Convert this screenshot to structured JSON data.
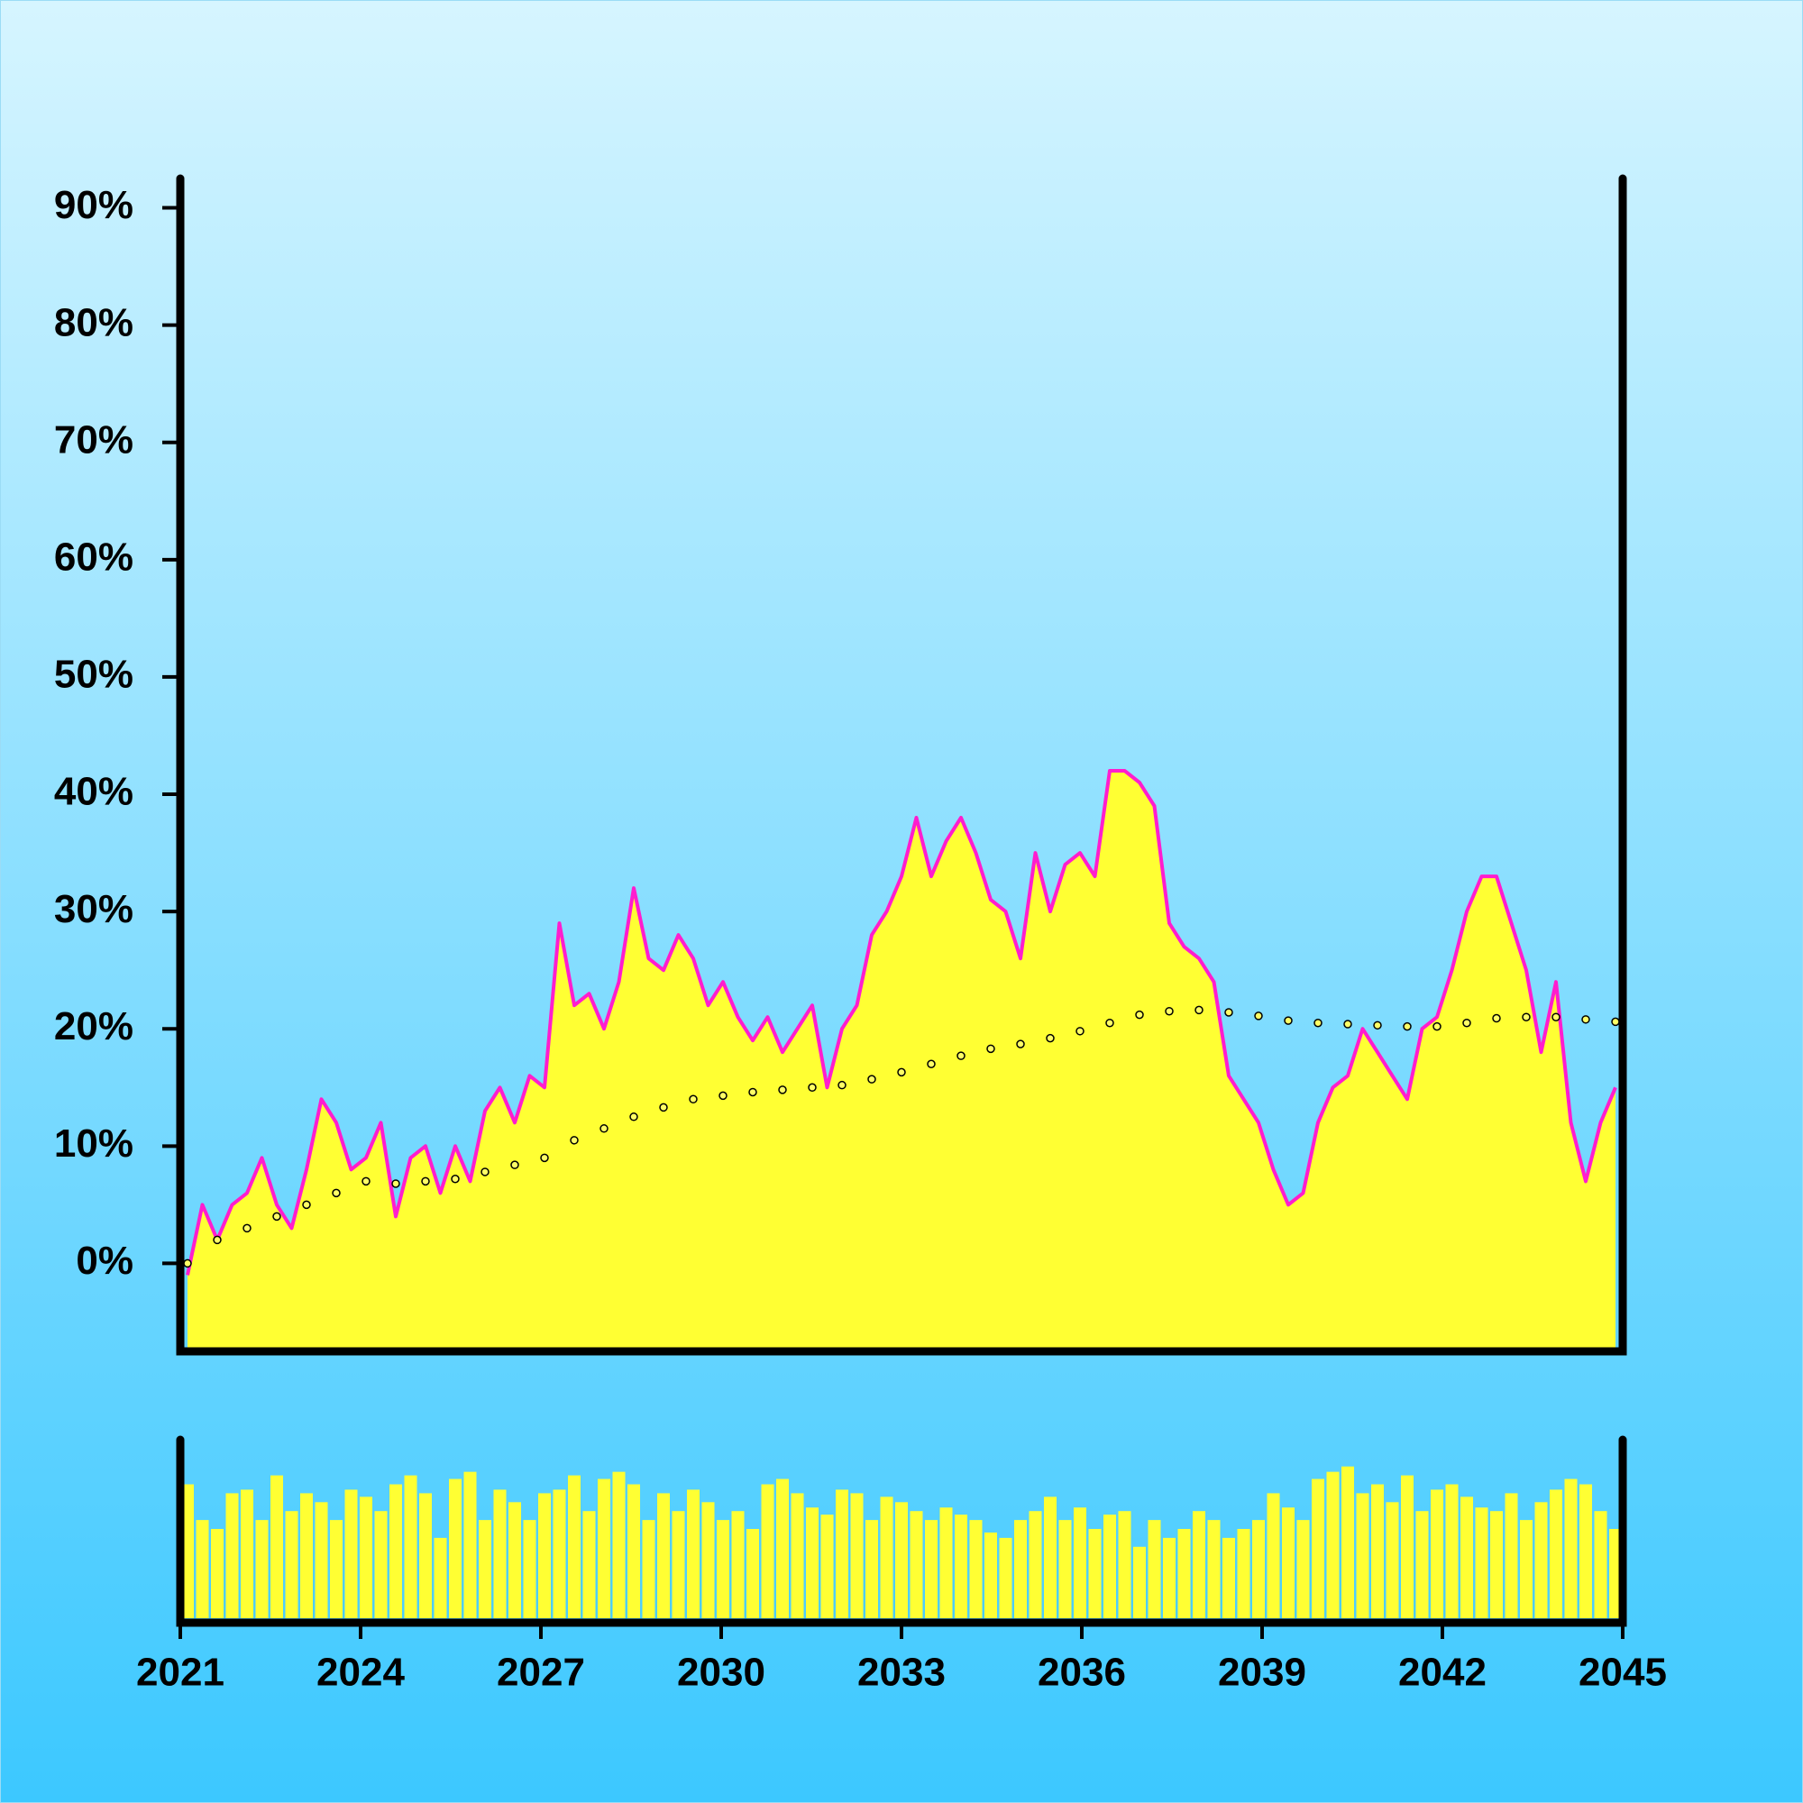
{
  "chart_data": [
    {
      "type": "area",
      "x": [
        2021,
        2021.25,
        2021.5,
        2021.75,
        2022,
        2022.25,
        2022.5,
        2022.75,
        2023,
        2023.25,
        2023.5,
        2023.75,
        2024,
        2024.25,
        2024.5,
        2024.75,
        2025,
        2025.25,
        2025.5,
        2025.75,
        2026,
        2026.25,
        2026.5,
        2026.75,
        2027,
        2027.25,
        2027.5,
        2027.75,
        2028,
        2028.25,
        2028.5,
        2028.75,
        2029,
        2029.25,
        2029.5,
        2029.75,
        2030,
        2030.25,
        2030.5,
        2030.75,
        2031,
        2031.25,
        2031.5,
        2031.75,
        2032,
        2032.25,
        2032.5,
        2032.75,
        2033,
        2033.25,
        2033.5,
        2033.75,
        2034,
        2034.25,
        2034.5,
        2034.75,
        2035,
        2035.25,
        2035.5,
        2035.75,
        2036,
        2036.25,
        2036.5,
        2036.75,
        2037,
        2037.25,
        2037.5,
        2037.75,
        2038,
        2038.25,
        2038.5,
        2038.75,
        2039,
        2039.25,
        2039.5,
        2039.75,
        2040,
        2040.25,
        2040.5,
        2040.75,
        2041,
        2041.25,
        2041.5,
        2041.75,
        2042,
        2042.25,
        2042.5,
        2042.75,
        2043,
        2043.25,
        2043.5,
        2043.75,
        2044,
        2044.25,
        2044.5,
        2044.75,
        2045
      ],
      "values": [
        -1,
        5,
        2,
        5,
        6,
        9,
        5,
        3,
        8,
        14,
        12,
        8,
        9,
        12,
        4,
        9,
        10,
        6,
        10,
        7,
        13,
        15,
        12,
        16,
        15,
        29,
        22,
        23,
        20,
        24,
        32,
        26,
        25,
        28,
        26,
        22,
        24,
        21,
        19,
        21,
        18,
        20,
        22,
        15,
        20,
        22,
        28,
        30,
        33,
        38,
        33,
        36,
        38,
        35,
        31,
        30,
        26,
        35,
        30,
        34,
        35,
        33,
        42,
        42,
        41,
        39,
        29,
        27,
        26,
        24,
        16,
        14,
        12,
        8,
        5,
        6,
        12,
        15,
        16,
        20,
        18,
        16,
        14,
        20,
        21,
        25,
        30,
        33,
        33,
        29,
        25,
        18,
        24,
        12,
        7,
        12,
        15
      ],
      "color": "#ff1dce",
      "fill": "#ffff33",
      "xlim": [
        2021,
        2045
      ],
      "ylim": [
        -7.5,
        92.5
      ],
      "yticks": [
        {
          "value": 0,
          "label": "0%"
        },
        {
          "value": 10,
          "label": "10%"
        },
        {
          "value": 20,
          "label": "20%"
        },
        {
          "value": 30,
          "label": "30%"
        },
        {
          "value": 40,
          "label": "40%"
        },
        {
          "value": 50,
          "label": "50%"
        },
        {
          "value": 60,
          "label": "60%"
        },
        {
          "value": 70,
          "label": "70%"
        },
        {
          "value": 80,
          "label": "80%"
        },
        {
          "value": 90,
          "label": "90%"
        }
      ],
      "overlay": {
        "type": "scatter",
        "x": [
          2021,
          2021.5,
          2022,
          2022.5,
          2023,
          2023.5,
          2024,
          2024.5,
          2025,
          2025.5,
          2026,
          2026.5,
          2027,
          2027.5,
          2028,
          2028.5,
          2029,
          2029.5,
          2030,
          2030.5,
          2031,
          2031.5,
          2032,
          2032.5,
          2033,
          2033.5,
          2034,
          2034.5,
          2035,
          2035.5,
          2036,
          2036.5,
          2037,
          2037.5,
          2038,
          2038.5,
          2039,
          2039.5,
          2040,
          2040.5,
          2041,
          2041.5,
          2042,
          2042.5,
          2043,
          2043.5,
          2044,
          2044.5,
          2045
        ],
        "values": [
          0,
          2,
          3,
          4,
          5,
          6,
          7,
          6.8,
          7,
          7.2,
          7.8,
          8.4,
          9,
          10.5,
          11.5,
          12.5,
          13.3,
          14,
          14.3,
          14.6,
          14.8,
          15,
          15.2,
          15.7,
          16.3,
          17,
          17.7,
          18.3,
          18.7,
          19.2,
          19.8,
          20.5,
          21.2,
          21.5,
          21.6,
          21.4,
          21.1,
          20.7,
          20.5,
          20.4,
          20.3,
          20.2,
          20.2,
          20.5,
          20.9,
          21,
          21,
          20.8,
          20.6
        ],
        "color": "#ffff66",
        "edgecolor": "#000000"
      }
    },
    {
      "type": "bar",
      "x": [
        2021,
        2021.25,
        2021.5,
        2021.75,
        2022,
        2022.25,
        2022.5,
        2022.75,
        2023,
        2023.25,
        2023.5,
        2023.75,
        2024,
        2024.25,
        2024.5,
        2024.75,
        2025,
        2025.25,
        2025.5,
        2025.75,
        2026,
        2026.25,
        2026.5,
        2026.75,
        2027,
        2027.25,
        2027.5,
        2027.75,
        2028,
        2028.25,
        2028.5,
        2028.75,
        2029,
        2029.25,
        2029.5,
        2029.75,
        2030,
        2030.25,
        2030.5,
        2030.75,
        2031,
        2031.25,
        2031.5,
        2031.75,
        2032,
        2032.25,
        2032.5,
        2032.75,
        2033,
        2033.25,
        2033.5,
        2033.75,
        2034,
        2034.25,
        2034.5,
        2034.75,
        2035,
        2035.25,
        2035.5,
        2035.75,
        2036,
        2036.25,
        2036.5,
        2036.75,
        2037,
        2037.25,
        2037.5,
        2037.75,
        2038,
        2038.25,
        2038.5,
        2038.75,
        2039,
        2039.25,
        2039.5,
        2039.75,
        2040,
        2040.25,
        2040.5,
        2040.75,
        2041,
        2041.25,
        2041.5,
        2041.75,
        2042,
        2042.25,
        2042.5,
        2042.75,
        2043,
        2043.25,
        2043.5,
        2043.75,
        2044,
        2044.25,
        2044.5,
        2044.75,
        2045
      ],
      "values": [
        75,
        55,
        50,
        70,
        72,
        55,
        80,
        60,
        70,
        65,
        55,
        72,
        68,
        60,
        75,
        80,
        70,
        45,
        78,
        82,
        55,
        72,
        65,
        55,
        70,
        72,
        80,
        60,
        78,
        82,
        75,
        55,
        70,
        60,
        72,
        65,
        55,
        60,
        50,
        75,
        78,
        70,
        62,
        58,
        72,
        70,
        55,
        68,
        65,
        60,
        55,
        62,
        58,
        55,
        48,
        45,
        55,
        60,
        68,
        55,
        62,
        50,
        58,
        60,
        40,
        55,
        45,
        50,
        60,
        55,
        45,
        50,
        55,
        70,
        62,
        55,
        78,
        82,
        85,
        70,
        75,
        65,
        80,
        60,
        72,
        75,
        68,
        62,
        60,
        70,
        55,
        65,
        72,
        78,
        75,
        60,
        50
      ],
      "color": "#ffff33",
      "xlim": [
        2021,
        2045
      ],
      "ylim": [
        0,
        100
      ],
      "xticks": [
        2021,
        2024,
        2027,
        2030,
        2033,
        2036,
        2039,
        2042,
        2045
      ]
    }
  ]
}
